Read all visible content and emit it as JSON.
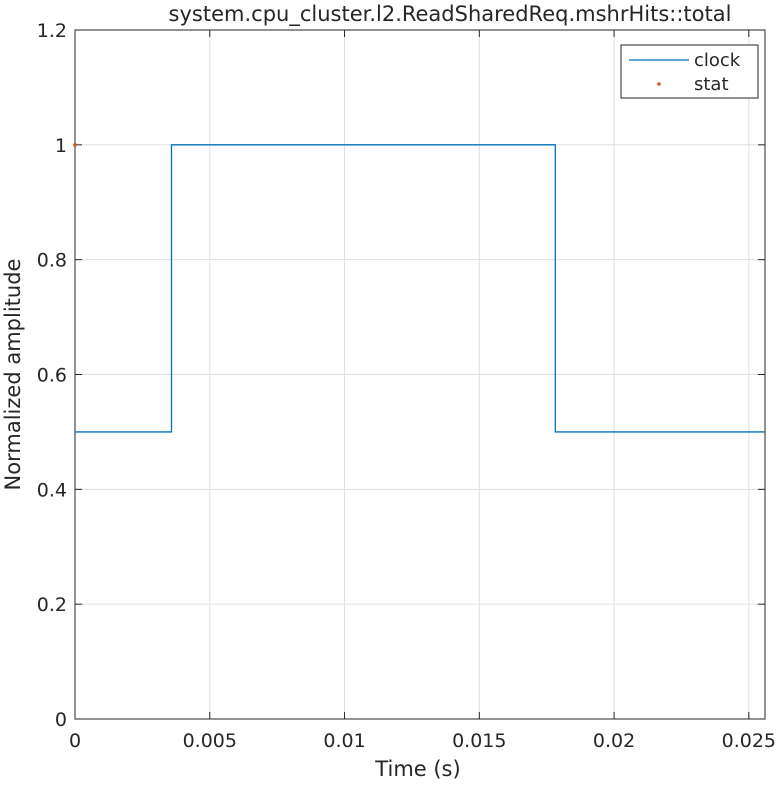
{
  "chart_data": {
    "type": "line",
    "title": "system.cpu_cluster.l2.ReadSharedReq.mshrHits::total",
    "xlabel": "Time (s)",
    "ylabel": "Normalized amplitude",
    "xlim": [
      0,
      0.0256
    ],
    "ylim": [
      0,
      1.2
    ],
    "xticks": [
      0,
      0.005,
      0.01,
      0.015,
      0.02,
      0.025
    ],
    "xtick_labels": [
      "0",
      "0.005",
      "0.01",
      "0.015",
      "0.02",
      "0.025"
    ],
    "yticks": [
      0,
      0.2,
      0.4,
      0.6,
      0.8,
      1,
      1.2
    ],
    "ytick_labels": [
      "0",
      "0.2",
      "0.4",
      "0.6",
      "0.8",
      "1",
      "1.2"
    ],
    "grid": true,
    "legend_position": "top-right",
    "series": [
      {
        "name": "clock",
        "style": "line",
        "color": "#0072BD",
        "x": [
          0,
          0.00358,
          0.00358,
          0.01782,
          0.01782,
          0.0256
        ],
        "y": [
          0.5,
          0.5,
          1,
          1,
          0.5,
          0.5
        ]
      },
      {
        "name": "stat",
        "style": "markers",
        "color": "#D95319",
        "x": [
          0
        ],
        "y": [
          1
        ]
      }
    ]
  }
}
